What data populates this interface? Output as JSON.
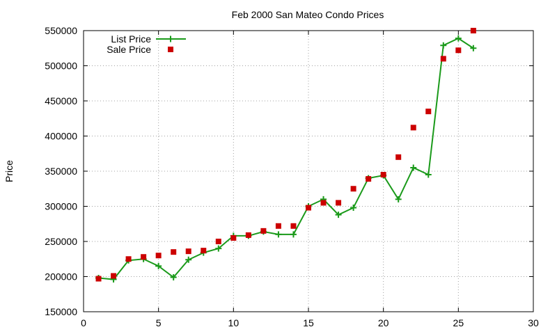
{
  "chart_data": {
    "type": "line",
    "title": "Feb 2000 San Mateo Condo Prices",
    "xlabel": "",
    "ylabel": "Price",
    "xlim": [
      0,
      30
    ],
    "ylim": [
      150000,
      550000
    ],
    "xticks": [
      0,
      5,
      10,
      15,
      20,
      25,
      30
    ],
    "yticks": [
      150000,
      200000,
      250000,
      300000,
      350000,
      400000,
      450000,
      500000,
      550000
    ],
    "grid": true,
    "legend_position": "top-left",
    "series": [
      {
        "name": "List Price",
        "style": "line+plus",
        "color": "#1a9a1a",
        "x": [
          1,
          2,
          3,
          4,
          5,
          6,
          7,
          8,
          9,
          10,
          11,
          12,
          13,
          14,
          15,
          16,
          17,
          18,
          19,
          20,
          21,
          22,
          23,
          24,
          25,
          26
        ],
        "y": [
          198000,
          196000,
          223000,
          225000,
          215000,
          199000,
          224000,
          234000,
          240000,
          258000,
          258000,
          264000,
          260000,
          260000,
          300000,
          310000,
          288000,
          298000,
          340000,
          344000,
          310000,
          355000,
          345000,
          529000,
          539000,
          525000
        ]
      },
      {
        "name": "Sale Price",
        "style": "square",
        "color": "#cc0000",
        "x": [
          1,
          2,
          3,
          4,
          5,
          6,
          7,
          8,
          9,
          10,
          11,
          12,
          13,
          14,
          15,
          16,
          17,
          18,
          19,
          20,
          21,
          22,
          23,
          24,
          25,
          26
        ],
        "y": [
          197000,
          201000,
          225000,
          228000,
          230000,
          235000,
          236000,
          237000,
          250000,
          255000,
          259000,
          265000,
          272000,
          272000,
          298000,
          305000,
          305000,
          325000,
          339000,
          345000,
          370000,
          412000,
          435000,
          510000,
          522000,
          550000
        ]
      }
    ]
  }
}
